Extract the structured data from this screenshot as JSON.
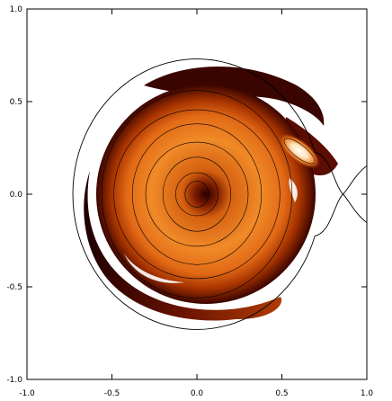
{
  "chart_data": {
    "type": "heatmap",
    "title": "",
    "xlabel": "",
    "ylabel": "",
    "xlim": [
      -1.0,
      1.0
    ],
    "ylim": [
      -1.0,
      1.0
    ],
    "x_ticks": [
      "-1.0",
      "-0.5",
      "0.0",
      "0.5",
      "1.0"
    ],
    "y_ticks": [
      "1.0",
      "0.5",
      "0.0",
      "-0.5",
      "-1.0"
    ],
    "x_tick_values": [
      -1.0,
      -0.5,
      0.0,
      0.5,
      1.0
    ],
    "y_tick_values": [
      1.0,
      0.5,
      0.0,
      -0.5,
      -1.0
    ],
    "colormap": [
      "#2a0000",
      "#6e0f00",
      "#b43a00",
      "#e0661a",
      "#f3912a",
      "#ffffff"
    ],
    "roche_lobe": {
      "primary_radius": 0.73,
      "secondary_center": [
        1.0,
        0.0
      ],
      "secondary_radius": 0.2
    },
    "disc": {
      "center": [
        0.0,
        0.0
      ],
      "outer_radius": 0.66,
      "contour_radii": [
        0.07,
        0.12,
        0.2,
        0.29,
        0.38,
        0.47,
        0.56
      ],
      "hot_spot": [
        0.58,
        0.22
      ]
    },
    "grid": false,
    "legend": "none"
  }
}
